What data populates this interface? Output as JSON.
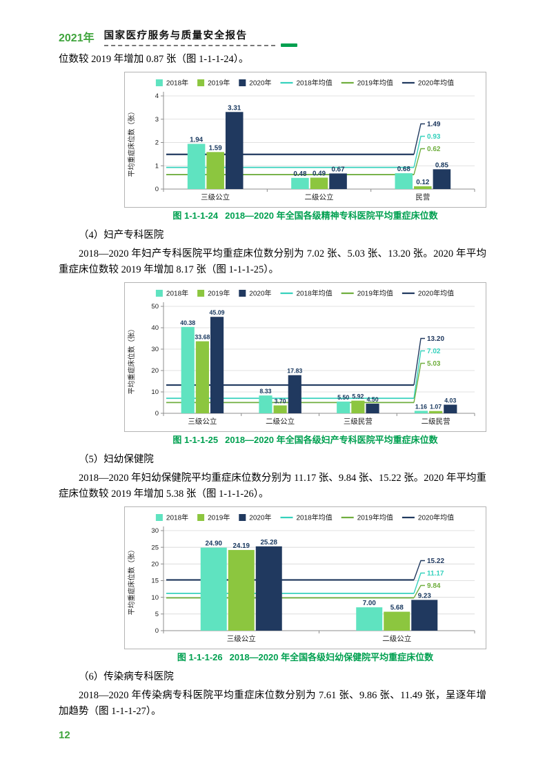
{
  "header": {
    "year": "2021年",
    "title": "国家医疗服务与质量安全报告"
  },
  "paragraphs": {
    "intro": "位数较 2019 年增加 0.87 张（图 1-1-1-24）。",
    "sec4_heading": "（4）妇产专科医院",
    "sec4_body": "2018—2020 年妇产专科医院平均重症床位数分别为 7.02 张、5.03 张、13.20 张。2020 年平均重症床位数较 2019 年增加 8.17 张（图 1-1-1-25）。",
    "sec5_heading": "（5）妇幼保健院",
    "sec5_body": "2018—2020 年妇幼保健院平均重症床位数分别为 11.17 张、9.84 张、15.22 张。2020 年平均重症床位数较 2019 年增加 5.38 张（图 1-1-1-26）。",
    "sec6_heading": "（6）传染病专科医院",
    "sec6_body": "2018—2020 年传染病专科医院平均重症床位数分别为 7.61 张、9.86 张、11.49 张，呈逐年增加趋势（图 1-1-1-27）。"
  },
  "footer": {
    "page_number": "12"
  },
  "colors": {
    "bar_2018": "#5fe3c0",
    "bar_2019": "#8cc63f",
    "bar_2020": "#20395f",
    "line_2018": "#35d1bd",
    "line_2019": "#6fae3e",
    "line_2020": "#20395f",
    "caption_green": "#00a050",
    "header_green": "#3fa43c",
    "value_label": "#17375e",
    "axis_text": "#1a1a1a",
    "grid": "#d6d6d6",
    "axis_line": "#8c8c8c",
    "chart_border": "#b3b3b3"
  },
  "chart_data": [
    {
      "type": "bar",
      "caption_label": "图 1-1-1-24",
      "title": "2018—2020 年全国各级精神专科医院平均重症床位数",
      "ylabel": "平均重症床位数（张）",
      "ylim": [
        0,
        4
      ],
      "ytick_step": 1,
      "grid": true,
      "legend_position": "top",
      "categories": [
        "三级公立",
        "二级公立",
        "民营"
      ],
      "series": [
        {
          "name": "2018年",
          "values": [
            1.94,
            0.48,
            0.68
          ]
        },
        {
          "name": "2019年",
          "values": [
            1.59,
            0.49,
            0.12
          ]
        },
        {
          "name": "2020年",
          "values": [
            3.31,
            0.67,
            0.85
          ]
        }
      ],
      "mean_lines": [
        {
          "name": "2018年均值",
          "value": 0.93
        },
        {
          "name": "2019年均值",
          "value": 0.62
        },
        {
          "name": "2020年均值",
          "value": 1.49
        }
      ]
    },
    {
      "type": "bar",
      "caption_label": "图 1-1-1-25",
      "title": "2018—2020 年全国各级妇产专科医院平均重症床位数",
      "ylabel": "平均重症床位数（张）",
      "ylim": [
        0,
        50
      ],
      "ytick_step": 10,
      "grid": true,
      "legend_position": "top",
      "categories": [
        "三级公立",
        "二级公立",
        "三级民营",
        "二级民营"
      ],
      "series": [
        {
          "name": "2018年",
          "values": [
            40.38,
            8.33,
            5.5,
            1.16
          ]
        },
        {
          "name": "2019年",
          "values": [
            33.68,
            3.7,
            5.92,
            1.07
          ]
        },
        {
          "name": "2020年",
          "values": [
            45.09,
            17.83,
            4.5,
            4.03
          ]
        }
      ],
      "mean_lines": [
        {
          "name": "2018年均值",
          "value": 7.02
        },
        {
          "name": "2019年均值",
          "value": 5.03
        },
        {
          "name": "2020年均值",
          "value": 13.2
        }
      ]
    },
    {
      "type": "bar",
      "caption_label": "图 1-1-1-26",
      "title": "2018—2020 年全国各级妇幼保健院平均重症床位数",
      "ylabel": "平均重症床位数（张）",
      "ylim": [
        0,
        30
      ],
      "ytick_step": 5,
      "grid": true,
      "legend_position": "top",
      "categories": [
        "三级公立",
        "二级公立"
      ],
      "series": [
        {
          "name": "2018年",
          "values": [
            24.9,
            7.0
          ]
        },
        {
          "name": "2019年",
          "values": [
            24.19,
            5.68
          ]
        },
        {
          "name": "2020年",
          "values": [
            25.28,
            9.23
          ]
        }
      ],
      "mean_lines": [
        {
          "name": "2018年均值",
          "value": 11.17
        },
        {
          "name": "2019年均值",
          "value": 9.84
        },
        {
          "name": "2020年均值",
          "value": 15.22
        }
      ]
    }
  ]
}
